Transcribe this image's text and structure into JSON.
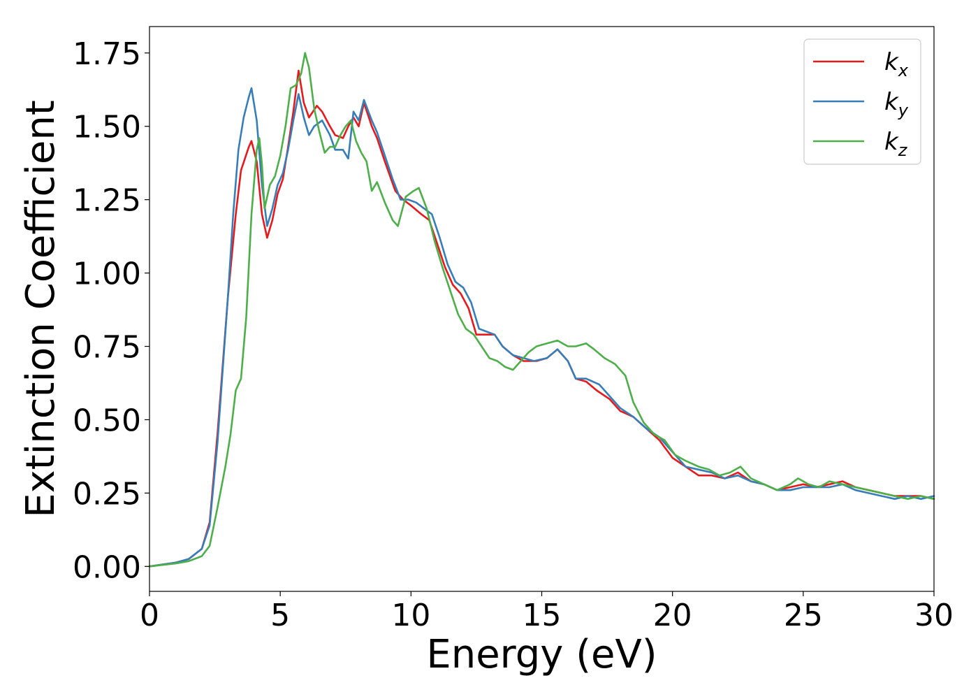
{
  "chart_data": {
    "type": "line",
    "xlabel": "Energy (eV)",
    "ylabel": "Extinction Coefficient",
    "xlim": [
      0,
      30
    ],
    "ylim": [
      -0.085,
      1.84
    ],
    "xticks": [
      0,
      5,
      10,
      15,
      20,
      25,
      30
    ],
    "xtick_labels": [
      "0",
      "5",
      "10",
      "15",
      "20",
      "25",
      "30"
    ],
    "yticks": [
      0.0,
      0.25,
      0.5,
      0.75,
      1.0,
      1.25,
      1.5,
      1.75
    ],
    "ytick_labels": [
      "0.00",
      "0.25",
      "0.50",
      "0.75",
      "1.00",
      "1.25",
      "1.50",
      "1.75"
    ],
    "grid": false,
    "legend_position": "top-right",
    "series": [
      {
        "name": "k",
        "subscript": "x",
        "color": "#e41a1c",
        "points": [
          [
            0,
            0
          ],
          [
            1,
            0.013
          ],
          [
            1.5,
            0.025
          ],
          [
            2,
            0.06
          ],
          [
            2.3,
            0.15
          ],
          [
            2.6,
            0.45
          ],
          [
            3,
            0.92
          ],
          [
            3.3,
            1.2
          ],
          [
            3.5,
            1.35
          ],
          [
            3.8,
            1.43
          ],
          [
            3.9,
            1.45
          ],
          [
            4.1,
            1.38
          ],
          [
            4.3,
            1.2
          ],
          [
            4.5,
            1.12
          ],
          [
            4.7,
            1.18
          ],
          [
            4.9,
            1.27
          ],
          [
            5.1,
            1.32
          ],
          [
            5.3,
            1.43
          ],
          [
            5.5,
            1.55
          ],
          [
            5.7,
            1.69
          ],
          [
            5.9,
            1.58
          ],
          [
            6.1,
            1.53
          ],
          [
            6.4,
            1.57
          ],
          [
            6.6,
            1.55
          ],
          [
            6.9,
            1.5
          ],
          [
            7.1,
            1.47
          ],
          [
            7.4,
            1.46
          ],
          [
            7.6,
            1.5
          ],
          [
            7.8,
            1.53
          ],
          [
            8.0,
            1.5
          ],
          [
            8.2,
            1.58
          ],
          [
            8.5,
            1.5
          ],
          [
            8.7,
            1.46
          ],
          [
            9.0,
            1.38
          ],
          [
            9.4,
            1.28
          ],
          [
            9.7,
            1.25
          ],
          [
            10.0,
            1.23
          ],
          [
            10.4,
            1.2
          ],
          [
            10.7,
            1.18
          ],
          [
            11.0,
            1.1
          ],
          [
            11.3,
            1.02
          ],
          [
            11.6,
            0.96
          ],
          [
            11.9,
            0.93
          ],
          [
            12.2,
            0.88
          ],
          [
            12.5,
            0.79
          ],
          [
            12.9,
            0.79
          ],
          [
            13.2,
            0.79
          ],
          [
            13.5,
            0.75
          ],
          [
            13.9,
            0.72
          ],
          [
            14.3,
            0.7
          ],
          [
            14.8,
            0.7
          ],
          [
            15.2,
            0.71
          ],
          [
            15.6,
            0.74
          ],
          [
            16.0,
            0.7
          ],
          [
            16.3,
            0.64
          ],
          [
            16.7,
            0.63
          ],
          [
            17.1,
            0.6
          ],
          [
            17.6,
            0.57
          ],
          [
            18.0,
            0.53
          ],
          [
            18.5,
            0.51
          ],
          [
            19.0,
            0.47
          ],
          [
            19.5,
            0.43
          ],
          [
            20.0,
            0.37
          ],
          [
            20.5,
            0.34
          ],
          [
            21.0,
            0.31
          ],
          [
            21.5,
            0.31
          ],
          [
            22.0,
            0.3
          ],
          [
            22.5,
            0.32
          ],
          [
            23.0,
            0.29
          ],
          [
            23.5,
            0.28
          ],
          [
            24.0,
            0.26
          ],
          [
            24.5,
            0.27
          ],
          [
            25.0,
            0.28
          ],
          [
            25.5,
            0.27
          ],
          [
            26.0,
            0.28
          ],
          [
            26.5,
            0.29
          ],
          [
            27.0,
            0.27
          ],
          [
            27.5,
            0.26
          ],
          [
            28.0,
            0.25
          ],
          [
            28.5,
            0.24
          ],
          [
            29.0,
            0.24
          ],
          [
            29.5,
            0.24
          ],
          [
            30,
            0.23
          ]
        ]
      },
      {
        "name": "k",
        "subscript": "y",
        "color": "#377eb8",
        "points": [
          [
            0,
            0
          ],
          [
            1,
            0.013
          ],
          [
            1.5,
            0.025
          ],
          [
            2,
            0.06
          ],
          [
            2.3,
            0.14
          ],
          [
            2.6,
            0.42
          ],
          [
            3,
            0.92
          ],
          [
            3.2,
            1.2
          ],
          [
            3.4,
            1.42
          ],
          [
            3.6,
            1.53
          ],
          [
            3.8,
            1.6
          ],
          [
            3.9,
            1.63
          ],
          [
            4.1,
            1.52
          ],
          [
            4.3,
            1.3
          ],
          [
            4.5,
            1.16
          ],
          [
            4.7,
            1.22
          ],
          [
            4.9,
            1.3
          ],
          [
            5.1,
            1.34
          ],
          [
            5.3,
            1.42
          ],
          [
            5.5,
            1.52
          ],
          [
            5.7,
            1.61
          ],
          [
            5.9,
            1.53
          ],
          [
            6.1,
            1.47
          ],
          [
            6.3,
            1.5
          ],
          [
            6.6,
            1.52
          ],
          [
            6.9,
            1.47
          ],
          [
            7.1,
            1.42
          ],
          [
            7.4,
            1.42
          ],
          [
            7.6,
            1.39
          ],
          [
            7.8,
            1.55
          ],
          [
            8.0,
            1.52
          ],
          [
            8.2,
            1.59
          ],
          [
            8.5,
            1.52
          ],
          [
            8.7,
            1.48
          ],
          [
            9.0,
            1.4
          ],
          [
            9.3,
            1.32
          ],
          [
            9.6,
            1.25
          ],
          [
            9.9,
            1.25
          ],
          [
            10.2,
            1.24
          ],
          [
            10.5,
            1.22
          ],
          [
            10.8,
            1.2
          ],
          [
            11.1,
            1.12
          ],
          [
            11.4,
            1.03
          ],
          [
            11.7,
            0.97
          ],
          [
            12.0,
            0.95
          ],
          [
            12.3,
            0.9
          ],
          [
            12.6,
            0.81
          ],
          [
            12.9,
            0.8
          ],
          [
            13.2,
            0.79
          ],
          [
            13.5,
            0.75
          ],
          [
            13.9,
            0.72
          ],
          [
            14.3,
            0.71
          ],
          [
            14.7,
            0.7
          ],
          [
            15.2,
            0.71
          ],
          [
            15.6,
            0.74
          ],
          [
            16.0,
            0.7
          ],
          [
            16.3,
            0.64
          ],
          [
            16.7,
            0.64
          ],
          [
            17.2,
            0.62
          ],
          [
            17.6,
            0.58
          ],
          [
            18.0,
            0.54
          ],
          [
            18.5,
            0.51
          ],
          [
            19.0,
            0.47
          ],
          [
            19.5,
            0.44
          ],
          [
            20.0,
            0.39
          ],
          [
            20.5,
            0.34
          ],
          [
            21.0,
            0.33
          ],
          [
            21.5,
            0.32
          ],
          [
            22.0,
            0.3
          ],
          [
            22.5,
            0.31
          ],
          [
            23.0,
            0.29
          ],
          [
            23.5,
            0.28
          ],
          [
            24.0,
            0.26
          ],
          [
            24.5,
            0.26
          ],
          [
            25.0,
            0.27
          ],
          [
            25.5,
            0.27
          ],
          [
            26.0,
            0.27
          ],
          [
            26.5,
            0.28
          ],
          [
            27.0,
            0.26
          ],
          [
            27.5,
            0.25
          ],
          [
            28.0,
            0.24
          ],
          [
            28.5,
            0.23
          ],
          [
            29.0,
            0.24
          ],
          [
            29.5,
            0.23
          ],
          [
            30,
            0.24
          ]
        ]
      },
      {
        "name": "k",
        "subscript": "z",
        "color": "#4daf4a",
        "points": [
          [
            0,
            0
          ],
          [
            1,
            0.01
          ],
          [
            1.5,
            0.018
          ],
          [
            2,
            0.035
          ],
          [
            2.3,
            0.07
          ],
          [
            2.6,
            0.2
          ],
          [
            2.9,
            0.34
          ],
          [
            3.1,
            0.45
          ],
          [
            3.3,
            0.6
          ],
          [
            3.5,
            0.64
          ],
          [
            3.7,
            0.85
          ],
          [
            3.9,
            1.2
          ],
          [
            4.1,
            1.42
          ],
          [
            4.2,
            1.46
          ],
          [
            4.3,
            1.37
          ],
          [
            4.4,
            1.22
          ],
          [
            4.6,
            1.3
          ],
          [
            4.8,
            1.33
          ],
          [
            5.0,
            1.4
          ],
          [
            5.2,
            1.5
          ],
          [
            5.4,
            1.63
          ],
          [
            5.6,
            1.64
          ],
          [
            5.8,
            1.68
          ],
          [
            5.95,
            1.75
          ],
          [
            6.1,
            1.7
          ],
          [
            6.3,
            1.56
          ],
          [
            6.5,
            1.48
          ],
          [
            6.7,
            1.41
          ],
          [
            6.9,
            1.43
          ],
          [
            7.1,
            1.43
          ],
          [
            7.3,
            1.47
          ],
          [
            7.5,
            1.5
          ],
          [
            7.7,
            1.52
          ],
          [
            7.9,
            1.45
          ],
          [
            8.1,
            1.41
          ],
          [
            8.3,
            1.38
          ],
          [
            8.5,
            1.28
          ],
          [
            8.7,
            1.31
          ],
          [
            9.0,
            1.24
          ],
          [
            9.3,
            1.18
          ],
          [
            9.5,
            1.16
          ],
          [
            9.8,
            1.26
          ],
          [
            10.1,
            1.28
          ],
          [
            10.3,
            1.29
          ],
          [
            10.6,
            1.22
          ],
          [
            10.9,
            1.11
          ],
          [
            11.2,
            1.02
          ],
          [
            11.5,
            0.94
          ],
          [
            11.8,
            0.86
          ],
          [
            12.1,
            0.81
          ],
          [
            12.4,
            0.79
          ],
          [
            12.7,
            0.75
          ],
          [
            13.0,
            0.71
          ],
          [
            13.3,
            0.7
          ],
          [
            13.6,
            0.68
          ],
          [
            13.9,
            0.67
          ],
          [
            14.2,
            0.7
          ],
          [
            14.5,
            0.73
          ],
          [
            14.8,
            0.75
          ],
          [
            15.2,
            0.76
          ],
          [
            15.6,
            0.77
          ],
          [
            16.0,
            0.75
          ],
          [
            16.3,
            0.75
          ],
          [
            16.7,
            0.76
          ],
          [
            17.0,
            0.74
          ],
          [
            17.4,
            0.71
          ],
          [
            17.8,
            0.69
          ],
          [
            18.2,
            0.65
          ],
          [
            18.5,
            0.56
          ],
          [
            18.9,
            0.49
          ],
          [
            19.3,
            0.45
          ],
          [
            19.7,
            0.43
          ],
          [
            20.1,
            0.38
          ],
          [
            20.5,
            0.36
          ],
          [
            21.0,
            0.34
          ],
          [
            21.4,
            0.33
          ],
          [
            21.8,
            0.31
          ],
          [
            22.2,
            0.32
          ],
          [
            22.6,
            0.34
          ],
          [
            23.0,
            0.3
          ],
          [
            23.5,
            0.28
          ],
          [
            24.0,
            0.26
          ],
          [
            24.5,
            0.28
          ],
          [
            24.8,
            0.3
          ],
          [
            25.2,
            0.28
          ],
          [
            25.6,
            0.27
          ],
          [
            26.0,
            0.29
          ],
          [
            26.5,
            0.28
          ],
          [
            27.0,
            0.27
          ],
          [
            27.5,
            0.26
          ],
          [
            28.0,
            0.25
          ],
          [
            28.5,
            0.24
          ],
          [
            29.0,
            0.23
          ],
          [
            29.5,
            0.24
          ],
          [
            30,
            0.23
          ]
        ]
      }
    ]
  }
}
